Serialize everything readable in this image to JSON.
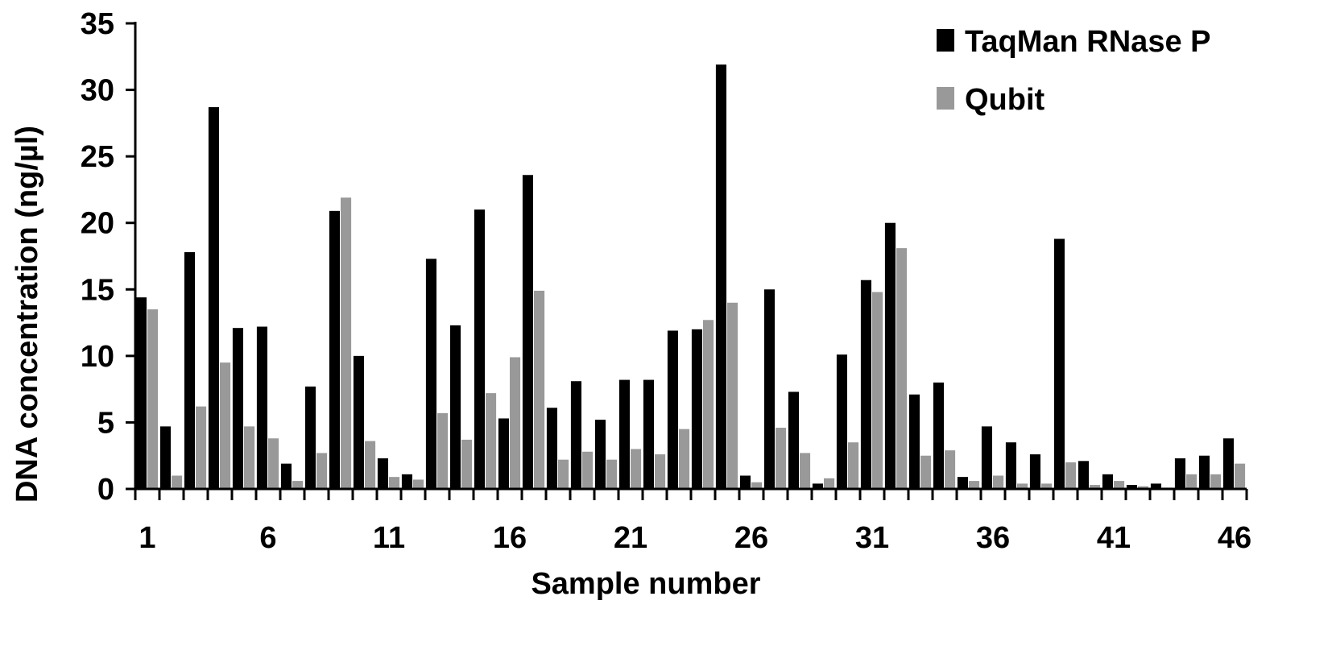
{
  "chart_data": {
    "type": "bar",
    "xlabel": "Sample number",
    "ylabel": "DNA concentration (ng/µl)",
    "ylim": [
      0,
      35
    ],
    "yticks": [
      0,
      5,
      10,
      15,
      20,
      25,
      30,
      35
    ],
    "x_tick_labels": [
      "1",
      "6",
      "11",
      "16",
      "21",
      "26",
      "31",
      "36",
      "41",
      "46"
    ],
    "categories": [
      "1",
      "2",
      "3",
      "4",
      "5",
      "6",
      "7",
      "8",
      "9",
      "10",
      "11",
      "12",
      "13",
      "14",
      "15",
      "16",
      "17",
      "18",
      "19",
      "20",
      "21",
      "22",
      "23",
      "24",
      "25",
      "26",
      "27",
      "28",
      "29",
      "30",
      "31",
      "32",
      "33",
      "34",
      "35",
      "36",
      "37",
      "38",
      "39",
      "40",
      "41",
      "42",
      "43",
      "44",
      "45",
      "46"
    ],
    "legend_position": "top-right",
    "grid": false,
    "series": [
      {
        "name": "TaqMan RNase P",
        "color": "#000000",
        "values": [
          14.4,
          4.7,
          17.8,
          28.7,
          12.1,
          12.2,
          1.9,
          7.7,
          20.9,
          10.0,
          2.3,
          1.1,
          17.3,
          12.3,
          21.0,
          5.3,
          23.6,
          6.1,
          8.1,
          5.2,
          8.2,
          8.2,
          11.9,
          12.0,
          31.9,
          1.0,
          15.0,
          7.3,
          0.4,
          10.1,
          15.7,
          20.0,
          7.1,
          8.0,
          0.9,
          4.7,
          3.5,
          2.6,
          18.8,
          2.1,
          1.1,
          0.3,
          0.4,
          2.3,
          2.5,
          3.8
        ]
      },
      {
        "name": "Qubit",
        "color": "#999999",
        "values": [
          13.5,
          1.0,
          6.2,
          9.5,
          4.7,
          3.8,
          0.6,
          2.7,
          21.9,
          3.6,
          0.9,
          0.7,
          5.7,
          3.7,
          7.2,
          9.9,
          14.9,
          2.2,
          2.8,
          2.2,
          3.0,
          2.6,
          4.5,
          12.7,
          14.0,
          0.5,
          4.6,
          2.7,
          0.8,
          3.5,
          14.8,
          18.1,
          2.5,
          2.9,
          0.6,
          1.0,
          0.4,
          0.4,
          2.0,
          0.3,
          0.6,
          0.2,
          0.1,
          1.1,
          1.1,
          1.9
        ]
      }
    ]
  }
}
